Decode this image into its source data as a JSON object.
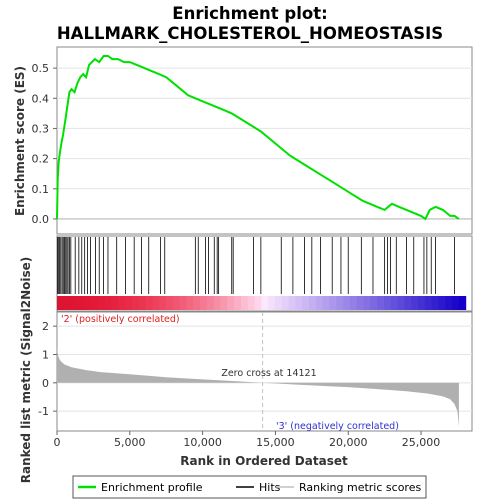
{
  "title_line1": "Enrichment plot:",
  "title_line2": "HALLMARK_CHOLESTEROL_HOMEOSTASIS",
  "colors": {
    "es_line": "#00e000",
    "hit": "#000000",
    "metric_fill": "#b0b0b0",
    "pos_label": "#e02020",
    "neg_label": "#3030d0",
    "zero_cross_line": "#c0c0c0"
  },
  "chart_data": [
    {
      "type": "line",
      "name": "enrichment_profile",
      "ylabel": "Enrichment score (ES)",
      "xlim": [
        0,
        28500
      ],
      "ylim": [
        -0.05,
        0.57
      ],
      "y_ticks": [
        0.0,
        0.1,
        0.2,
        0.3,
        0.4,
        0.5
      ],
      "y_tick_labels": [
        "0.0",
        "0.1",
        "0.2",
        "0.3",
        "0.4",
        "0.5"
      ],
      "x": [
        0,
        50,
        120,
        200,
        300,
        420,
        550,
        700,
        850,
        1000,
        1200,
        1400,
        1600,
        1800,
        2000,
        2200,
        2400,
        2600,
        2900,
        3200,
        3500,
        3800,
        4200,
        4600,
        5000,
        5500,
        6000,
        6500,
        7000,
        7500,
        8000,
        8500,
        9000,
        9500,
        10000,
        10500,
        11000,
        11500,
        12000,
        13000,
        14000,
        15000,
        16000,
        17000,
        18000,
        19000,
        20000,
        21000,
        22000,
        22500,
        23000,
        23500,
        24000,
        24500,
        25000,
        25300,
        25600,
        26000,
        26500,
        27000,
        27300,
        27600
      ],
      "y": [
        0.0,
        0.13,
        0.19,
        0.22,
        0.25,
        0.28,
        0.32,
        0.37,
        0.42,
        0.43,
        0.42,
        0.45,
        0.47,
        0.48,
        0.47,
        0.51,
        0.52,
        0.53,
        0.52,
        0.54,
        0.54,
        0.53,
        0.53,
        0.52,
        0.52,
        0.51,
        0.5,
        0.49,
        0.48,
        0.47,
        0.45,
        0.43,
        0.41,
        0.4,
        0.39,
        0.38,
        0.37,
        0.36,
        0.35,
        0.32,
        0.29,
        0.25,
        0.21,
        0.18,
        0.15,
        0.12,
        0.09,
        0.06,
        0.04,
        0.03,
        0.05,
        0.04,
        0.03,
        0.02,
        0.01,
        0.0,
        0.03,
        0.04,
        0.03,
        0.01,
        0.01,
        0.0
      ]
    },
    {
      "type": "hits",
      "name": "hits",
      "positions": [
        30,
        90,
        180,
        260,
        350,
        430,
        520,
        600,
        680,
        760,
        850,
        950,
        1250,
        1500,
        1700,
        1900,
        2100,
        2300,
        2650,
        2900,
        3200,
        3500,
        4100,
        4700,
        5300,
        5800,
        6300,
        7100,
        7400,
        9500,
        9700,
        10200,
        10400,
        10800,
        11000,
        11100,
        12000,
        12100,
        13500,
        14000,
        15400,
        16200,
        17000,
        17500,
        18100,
        18900,
        19500,
        20000,
        20900,
        21700,
        22500,
        22700,
        22900,
        23300,
        24000,
        24500,
        25200,
        25400,
        25700,
        26000,
        27300
      ]
    },
    {
      "type": "area",
      "name": "ranked_metric",
      "ylabel": "Ranked list metric (Signal2Noise)",
      "xlabel": "Rank in Ordered Dataset",
      "xlim": [
        0,
        28500
      ],
      "ylim": [
        -1.7,
        2.5
      ],
      "x_ticks": [
        0,
        5000,
        10000,
        15000,
        20000,
        25000
      ],
      "x_tick_labels": [
        "0",
        "5,000",
        "10,000",
        "15,000",
        "20,000",
        "25,000"
      ],
      "y_ticks": [
        -1,
        0,
        1,
        2
      ],
      "y_tick_labels": [
        "-1",
        "0",
        "1",
        "2"
      ],
      "x": [
        0,
        80,
        200,
        500,
        1000,
        2000,
        3000,
        5000,
        7500,
        10000,
        12500,
        14121,
        16000,
        18000,
        20000,
        22000,
        24000,
        25500,
        26500,
        27000,
        27300,
        27500,
        27600
      ],
      "y": [
        1.25,
        0.95,
        0.8,
        0.65,
        0.55,
        0.45,
        0.38,
        0.3,
        0.2,
        0.12,
        0.05,
        0.0,
        -0.05,
        -0.1,
        -0.15,
        -0.22,
        -0.3,
        -0.38,
        -0.48,
        -0.58,
        -0.75,
        -1.0,
        -1.55
      ]
    }
  ],
  "annotations": {
    "zero_cross": "Zero cross at 14121",
    "zero_cross_x": 14121,
    "positive": "'2' (positively correlated)",
    "negative": "'3' (negatively correlated)"
  },
  "legend": [
    {
      "label": "Enrichment profile",
      "symbol": "green-line"
    },
    {
      "label": "Hits",
      "symbol": "black-line"
    },
    {
      "label": "Ranking metric scores",
      "symbol": "gray-line"
    }
  ]
}
